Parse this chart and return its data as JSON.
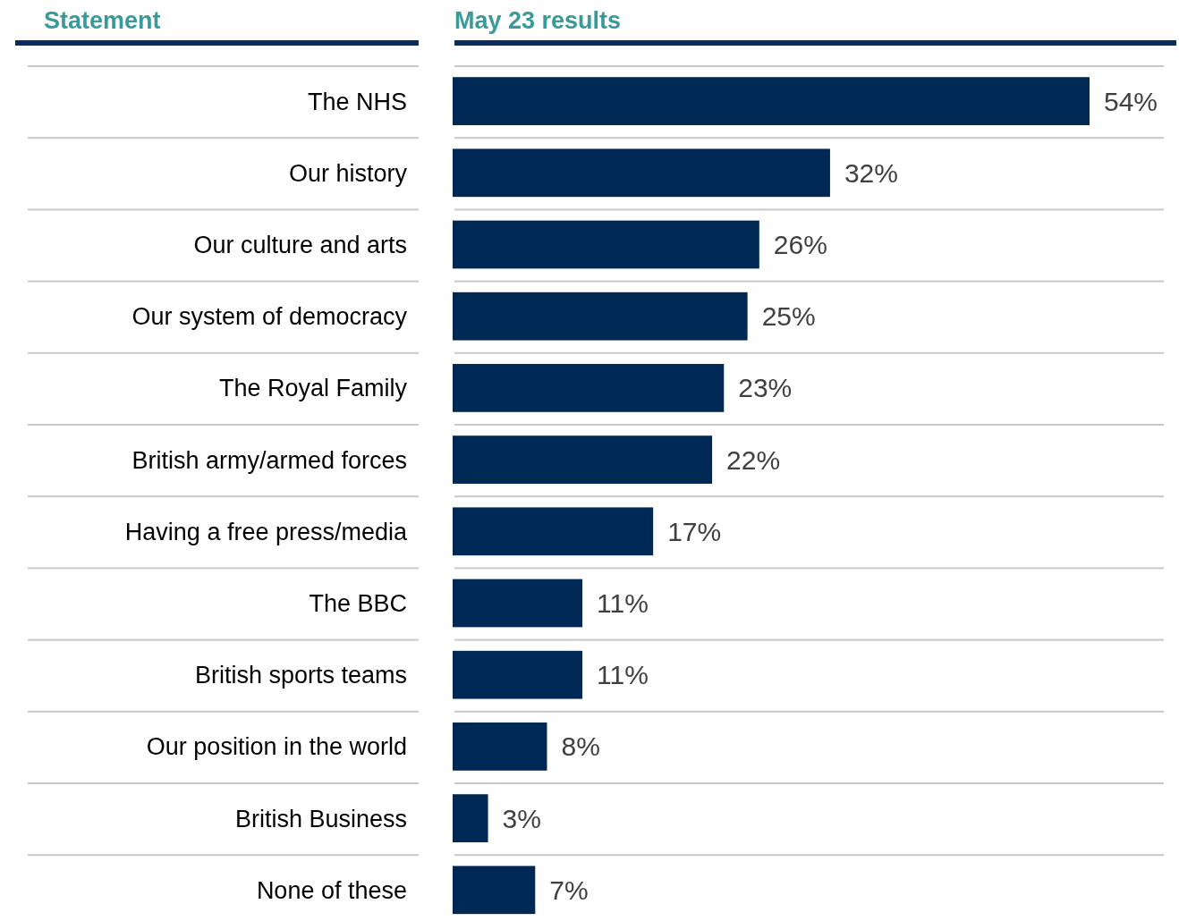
{
  "chart_data": {
    "type": "bar",
    "orientation": "horizontal",
    "ylabel": "Statement",
    "title": "May 23 results",
    "categories": [
      "The NHS",
      "Our history",
      "Our culture and arts",
      "Our system of democracy",
      "The Royal Family",
      "British army/armed forces",
      "Having a free press/media",
      "The BBC",
      "British sports teams",
      "Our position in the world",
      "British Business",
      "None of these"
    ],
    "values": [
      54,
      32,
      26,
      25,
      23,
      22,
      17,
      11,
      11,
      8,
      3,
      7
    ],
    "value_labels": [
      "54%",
      "32%",
      "26%",
      "25%",
      "23%",
      "22%",
      "17%",
      "11%",
      "11%",
      "8%",
      "3%",
      "7%"
    ],
    "color": "#002855"
  }
}
